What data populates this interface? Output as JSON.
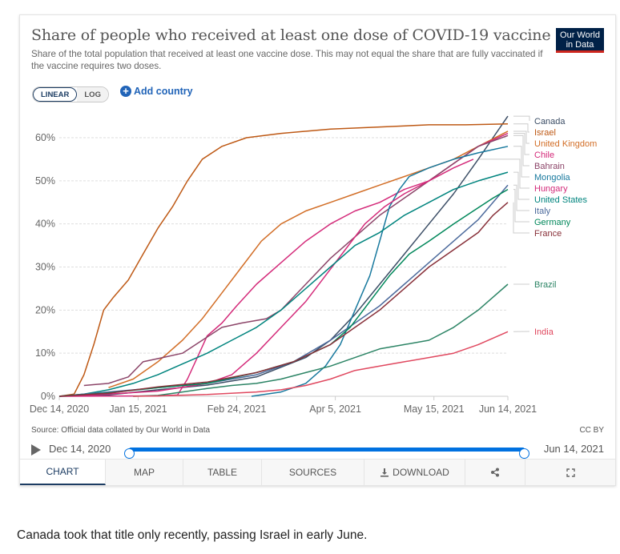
{
  "header": {
    "title": "Share of people who received at least one dose of COVID-19 vaccine",
    "subtitle": "Share of the total population that received at least one vaccine dose. This may not equal the share that are fully vaccinated if the vaccine requires two doses.",
    "logo_line1": "Our World",
    "logo_line2": "in Data"
  },
  "controls": {
    "scale_linear": "LINEAR",
    "scale_log": "LOG",
    "scale_selected": "LINEAR",
    "add_country": "Add country",
    "add_icon": "+"
  },
  "footer": {
    "source": "Source: Official data collated by Our World in Data",
    "license": "CC BY",
    "timeline_start": "Dec 14, 2020",
    "timeline_end": "Jun 14, 2021",
    "timeline_start_fraction": 0,
    "timeline_end_fraction": 1
  },
  "tabs": [
    {
      "label": "CHART",
      "icon": "",
      "active": true
    },
    {
      "label": "MAP",
      "icon": "",
      "active": false
    },
    {
      "label": "TABLE",
      "icon": "",
      "active": false
    },
    {
      "label": "SOURCES",
      "icon": "",
      "active": false
    },
    {
      "label": "DOWNLOAD",
      "icon": "download-icon",
      "active": false
    },
    {
      "label": "",
      "icon": "share-icon",
      "active": false
    },
    {
      "label": "",
      "icon": "fullscreen-icon",
      "active": false
    }
  ],
  "caption": "Canada took that title only recently, passing Israel in early June.",
  "chart_data": {
    "type": "line",
    "title": "Share of people who received at least one dose of COVID-19 vaccine",
    "xlabel": "",
    "ylabel": "",
    "x_start": "2020-12-14",
    "x_end": "2021-06-14",
    "x_ticks": [
      {
        "label": "Dec 14, 2020",
        "day": 0
      },
      {
        "label": "Jan 15, 2021",
        "day": 32
      },
      {
        "label": "Feb 24, 2021",
        "day": 72
      },
      {
        "label": "Apr 5, 2021",
        "day": 112
      },
      {
        "label": "May 15, 2021",
        "day": 152
      },
      {
        "label": "Jun 14, 2021",
        "day": 182
      }
    ],
    "y_ticks": [
      "0%",
      "10%",
      "20%",
      "30%",
      "40%",
      "50%",
      "60%"
    ],
    "ylim": [
      0,
      65
    ],
    "grid": true,
    "legend": "right (inline end labels)",
    "x_unit": "days since Dec 14, 2020",
    "series": [
      {
        "name": "Canada",
        "color": "#3c4e66",
        "points": [
          [
            0,
            0
          ],
          [
            20,
            0.3
          ],
          [
            40,
            1.5
          ],
          [
            60,
            2.6
          ],
          [
            80,
            4.5
          ],
          [
            100,
            9
          ],
          [
            110,
            13
          ],
          [
            120,
            19
          ],
          [
            130,
            26
          ],
          [
            140,
            33
          ],
          [
            150,
            40
          ],
          [
            160,
            47
          ],
          [
            170,
            55
          ],
          [
            176,
            60
          ],
          [
            182,
            65
          ]
        ]
      },
      {
        "name": "Israel",
        "color": "#be5915",
        "points": [
          [
            0,
            0
          ],
          [
            6,
            0.5
          ],
          [
            10,
            5
          ],
          [
            14,
            12
          ],
          [
            18,
            20
          ],
          [
            22,
            23
          ],
          [
            28,
            27
          ],
          [
            34,
            33
          ],
          [
            40,
            39
          ],
          [
            46,
            44
          ],
          [
            52,
            50
          ],
          [
            58,
            55
          ],
          [
            66,
            58
          ],
          [
            76,
            60
          ],
          [
            90,
            61
          ],
          [
            110,
            62
          ],
          [
            130,
            62.5
          ],
          [
            150,
            63
          ],
          [
            165,
            63
          ],
          [
            182,
            63.2
          ]
        ]
      },
      {
        "name": "United Kingdom",
        "color": "#d26e27",
        "points": [
          [
            20,
            2
          ],
          [
            30,
            4
          ],
          [
            40,
            8
          ],
          [
            50,
            13
          ],
          [
            58,
            18
          ],
          [
            66,
            24
          ],
          [
            74,
            30
          ],
          [
            82,
            36
          ],
          [
            90,
            40
          ],
          [
            100,
            43
          ],
          [
            110,
            45
          ],
          [
            120,
            47
          ],
          [
            130,
            49
          ],
          [
            140,
            51
          ],
          [
            150,
            53
          ],
          [
            160,
            55
          ],
          [
            170,
            58
          ],
          [
            182,
            61.5
          ]
        ]
      },
      {
        "name": "Chile",
        "color": "#d42b7a",
        "points": [
          [
            0,
            0
          ],
          [
            40,
            0.1
          ],
          [
            48,
            0.3
          ],
          [
            52,
            4
          ],
          [
            56,
            9
          ],
          [
            60,
            14
          ],
          [
            66,
            17
          ],
          [
            72,
            21
          ],
          [
            80,
            26
          ],
          [
            90,
            31
          ],
          [
            100,
            36
          ],
          [
            110,
            40
          ],
          [
            120,
            43
          ],
          [
            130,
            45
          ],
          [
            140,
            48
          ],
          [
            150,
            50
          ],
          [
            160,
            54
          ],
          [
            170,
            58
          ],
          [
            182,
            61
          ]
        ]
      },
      {
        "name": "Bahrain",
        "color": "#8c4569",
        "points": [
          [
            10,
            2.5
          ],
          [
            20,
            3
          ],
          [
            28,
            4.5
          ],
          [
            34,
            8
          ],
          [
            42,
            9
          ],
          [
            50,
            10
          ],
          [
            58,
            13
          ],
          [
            66,
            16
          ],
          [
            74,
            17
          ],
          [
            84,
            18
          ],
          [
            90,
            20
          ],
          [
            100,
            26
          ],
          [
            110,
            32
          ],
          [
            120,
            37
          ],
          [
            130,
            42
          ],
          [
            140,
            46
          ],
          [
            150,
            50
          ],
          [
            160,
            54
          ],
          [
            170,
            58
          ],
          [
            182,
            60.5
          ]
        ]
      },
      {
        "name": "Mongolia",
        "color": "#18799e",
        "points": [
          [
            78,
            0
          ],
          [
            90,
            1
          ],
          [
            100,
            3
          ],
          [
            108,
            7
          ],
          [
            114,
            12
          ],
          [
            120,
            20
          ],
          [
            126,
            28
          ],
          [
            130,
            36
          ],
          [
            134,
            44
          ],
          [
            138,
            48
          ],
          [
            142,
            51
          ],
          [
            150,
            53
          ],
          [
            160,
            55
          ],
          [
            170,
            56.5
          ],
          [
            182,
            58
          ]
        ]
      },
      {
        "name": "Hungary",
        "color": "#d42b7a",
        "points": [
          [
            0,
            0
          ],
          [
            20,
            0.5
          ],
          [
            40,
            1.2
          ],
          [
            60,
            3
          ],
          [
            70,
            5
          ],
          [
            80,
            10
          ],
          [
            90,
            16
          ],
          [
            100,
            22
          ],
          [
            108,
            28
          ],
          [
            116,
            34
          ],
          [
            124,
            40
          ],
          [
            132,
            44
          ],
          [
            140,
            47
          ],
          [
            150,
            50
          ],
          [
            160,
            53
          ],
          [
            168,
            55
          ]
        ]
      },
      {
        "name": "United States",
        "color": "#00847e",
        "points": [
          [
            0,
            0
          ],
          [
            10,
            0.5
          ],
          [
            20,
            1.5
          ],
          [
            30,
            3
          ],
          [
            40,
            5
          ],
          [
            50,
            7.5
          ],
          [
            60,
            10
          ],
          [
            70,
            13
          ],
          [
            80,
            16
          ],
          [
            90,
            20
          ],
          [
            100,
            25
          ],
          [
            110,
            30
          ],
          [
            120,
            35
          ],
          [
            130,
            38
          ],
          [
            140,
            42
          ],
          [
            150,
            45
          ],
          [
            160,
            48
          ],
          [
            170,
            50
          ],
          [
            182,
            52
          ]
        ]
      },
      {
        "name": "Italy",
        "color": "#4c6a9c",
        "points": [
          [
            0,
            0
          ],
          [
            20,
            1
          ],
          [
            40,
            2
          ],
          [
            60,
            3
          ],
          [
            80,
            5
          ],
          [
            95,
            8
          ],
          [
            110,
            13
          ],
          [
            120,
            17
          ],
          [
            130,
            21
          ],
          [
            140,
            26
          ],
          [
            150,
            31
          ],
          [
            160,
            36
          ],
          [
            170,
            41
          ],
          [
            176,
            45
          ],
          [
            182,
            49
          ]
        ]
      },
      {
        "name": "Germany",
        "color": "#00875a",
        "points": [
          [
            0,
            0
          ],
          [
            20,
            0.8
          ],
          [
            40,
            2
          ],
          [
            60,
            3
          ],
          [
            80,
            5.5
          ],
          [
            95,
            8
          ],
          [
            110,
            12
          ],
          [
            118,
            16
          ],
          [
            126,
            22
          ],
          [
            134,
            28
          ],
          [
            142,
            33
          ],
          [
            150,
            36
          ],
          [
            160,
            40
          ],
          [
            168,
            43
          ],
          [
            176,
            46
          ],
          [
            182,
            48
          ]
        ]
      },
      {
        "name": "France",
        "color": "#883039",
        "points": [
          [
            0,
            0
          ],
          [
            20,
            0.7
          ],
          [
            40,
            2.2
          ],
          [
            60,
            3.3
          ],
          [
            80,
            5.5
          ],
          [
            95,
            8
          ],
          [
            110,
            12
          ],
          [
            120,
            16
          ],
          [
            130,
            20
          ],
          [
            140,
            25
          ],
          [
            150,
            30
          ],
          [
            160,
            34
          ],
          [
            170,
            38
          ],
          [
            176,
            42
          ],
          [
            182,
            45
          ]
        ]
      },
      {
        "name": "Brazil",
        "color": "#2c8465",
        "points": [
          [
            30,
            0
          ],
          [
            40,
            0.2
          ],
          [
            50,
            1
          ],
          [
            60,
            1.8
          ],
          [
            70,
            2.5
          ],
          [
            80,
            3
          ],
          [
            90,
            4
          ],
          [
            100,
            5.5
          ],
          [
            110,
            7
          ],
          [
            120,
            9
          ],
          [
            130,
            11
          ],
          [
            140,
            12
          ],
          [
            150,
            13
          ],
          [
            160,
            16
          ],
          [
            170,
            20
          ],
          [
            176,
            23
          ],
          [
            182,
            26
          ]
        ]
      },
      {
        "name": "India",
        "color": "#e0485f",
        "points": [
          [
            30,
            0
          ],
          [
            40,
            0.1
          ],
          [
            60,
            0.4
          ],
          [
            80,
            1
          ],
          [
            90,
            1.5
          ],
          [
            100,
            2.5
          ],
          [
            110,
            4
          ],
          [
            120,
            6
          ],
          [
            130,
            7
          ],
          [
            140,
            8
          ],
          [
            150,
            9
          ],
          [
            160,
            10
          ],
          [
            170,
            12
          ],
          [
            182,
            15
          ]
        ]
      }
    ]
  }
}
